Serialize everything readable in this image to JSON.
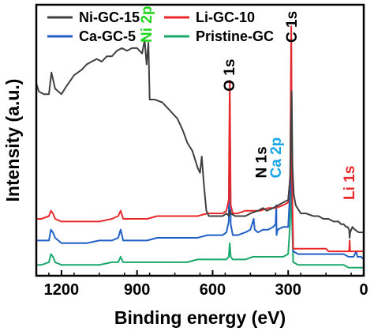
{
  "chart_data": {
    "type": "line",
    "title": "",
    "xlabel": "Binding energy (eV)",
    "ylabel": "Intensity (a.u.)",
    "xlim": [
      1300,
      0
    ],
    "x_reversed": true,
    "x_ticks": [
      1200,
      900,
      600,
      300,
      0
    ],
    "y_ticks_shown": false,
    "grid": false,
    "legend_placement": "top",
    "series": [
      {
        "name": "Ni-GC-15",
        "color": "#404040",
        "points": [
          [
            1300,
            0.71
          ],
          [
            1290,
            0.68
          ],
          [
            1270,
            0.67
          ],
          [
            1250,
            0.67
          ],
          [
            1240,
            0.75
          ],
          [
            1225,
            0.69
          ],
          [
            1200,
            0.67
          ],
          [
            1180,
            0.7
          ],
          [
            1150,
            0.74
          ],
          [
            1120,
            0.76
          ],
          [
            1100,
            0.78
          ],
          [
            1080,
            0.79
          ],
          [
            1060,
            0.8
          ],
          [
            1040,
            0.79
          ],
          [
            1020,
            0.81
          ],
          [
            1000,
            0.81
          ],
          [
            980,
            0.83
          ],
          [
            960,
            0.84
          ],
          [
            940,
            0.83
          ],
          [
            920,
            0.84
          ],
          [
            900,
            0.84
          ],
          [
            880,
            0.82
          ],
          [
            870,
            0.87
          ],
          [
            862,
            0.78
          ],
          [
            855,
            0.86
          ],
          [
            850,
            0.65
          ],
          [
            830,
            0.65
          ],
          [
            800,
            0.64
          ],
          [
            780,
            0.62
          ],
          [
            760,
            0.6
          ],
          [
            740,
            0.58
          ],
          [
            720,
            0.54
          ],
          [
            700,
            0.49
          ],
          [
            680,
            0.46
          ],
          [
            660,
            0.4
          ],
          [
            650,
            0.38
          ],
          [
            643,
            0.44
          ],
          [
            635,
            0.34
          ],
          [
            625,
            0.24
          ],
          [
            615,
            0.22
          ],
          [
            600,
            0.22
          ],
          [
            580,
            0.22
          ],
          [
            560,
            0.22
          ],
          [
            545,
            0.23
          ],
          [
            535,
            0.22
          ],
          [
            532,
            0.24
          ],
          [
            528,
            0.23
          ],
          [
            510,
            0.22
          ],
          [
            490,
            0.22
          ],
          [
            470,
            0.22
          ],
          [
            450,
            0.23
          ],
          [
            420,
            0.24
          ],
          [
            400,
            0.25
          ],
          [
            385,
            0.24
          ],
          [
            360,
            0.25
          ],
          [
            340,
            0.26
          ],
          [
            320,
            0.27
          ],
          [
            300,
            0.28
          ],
          [
            292,
            0.36
          ],
          [
            289,
            0.54
          ],
          [
            286,
            0.68
          ],
          [
            283,
            0.4
          ],
          [
            278,
            0.3
          ],
          [
            270,
            0.26
          ],
          [
            250,
            0.23
          ],
          [
            230,
            0.23
          ],
          [
            200,
            0.22
          ],
          [
            180,
            0.22
          ],
          [
            160,
            0.21
          ],
          [
            140,
            0.21
          ],
          [
            120,
            0.2
          ],
          [
            100,
            0.2
          ],
          [
            90,
            0.19
          ],
          [
            80,
            0.19
          ],
          [
            70,
            0.18
          ],
          [
            64,
            0.18
          ],
          [
            58,
            0.17
          ],
          [
            56,
            0.14
          ],
          [
            54,
            0.16
          ],
          [
            45,
            0.18
          ],
          [
            35,
            0.17
          ],
          [
            20,
            0.16
          ],
          [
            10,
            0.16
          ],
          [
            0,
            0.16
          ]
        ]
      },
      {
        "name": "Li-GC-10",
        "color": "#e8292b",
        "points": [
          [
            1300,
            0.21
          ],
          [
            1280,
            0.21
          ],
          [
            1250,
            0.22
          ],
          [
            1242,
            0.24
          ],
          [
            1234,
            0.23
          ],
          [
            1225,
            0.21
          ],
          [
            1200,
            0.2
          ],
          [
            1150,
            0.2
          ],
          [
            1100,
            0.2
          ],
          [
            1050,
            0.2
          ],
          [
            1000,
            0.21
          ],
          [
            975,
            0.22
          ],
          [
            965,
            0.24
          ],
          [
            955,
            0.21
          ],
          [
            940,
            0.21
          ],
          [
            900,
            0.21
          ],
          [
            860,
            0.21
          ],
          [
            820,
            0.22
          ],
          [
            780,
            0.22
          ],
          [
            740,
            0.22
          ],
          [
            700,
            0.22
          ],
          [
            660,
            0.22
          ],
          [
            620,
            0.23
          ],
          [
            580,
            0.23
          ],
          [
            560,
            0.23
          ],
          [
            545,
            0.24
          ],
          [
            536,
            0.28
          ],
          [
            532,
            0.72
          ],
          [
            528,
            0.26
          ],
          [
            520,
            0.23
          ],
          [
            500,
            0.23
          ],
          [
            470,
            0.24
          ],
          [
            440,
            0.24
          ],
          [
            410,
            0.24
          ],
          [
            380,
            0.25
          ],
          [
            350,
            0.25
          ],
          [
            320,
            0.26
          ],
          [
            300,
            0.27
          ],
          [
            292,
            0.37
          ],
          [
            288,
            0.92
          ],
          [
            285,
            0.38
          ],
          [
            280,
            0.1
          ],
          [
            260,
            0.1
          ],
          [
            230,
            0.1
          ],
          [
            200,
            0.1
          ],
          [
            170,
            0.1
          ],
          [
            150,
            0.1
          ],
          [
            140,
            0.09
          ],
          [
            120,
            0.09
          ],
          [
            100,
            0.09
          ],
          [
            80,
            0.09
          ],
          [
            64,
            0.09
          ],
          [
            58,
            0.09
          ],
          [
            56,
            0.13
          ],
          [
            54,
            0.09
          ],
          [
            40,
            0.09
          ],
          [
            20,
            0.09
          ],
          [
            10,
            0.09
          ],
          [
            0,
            0.09
          ]
        ]
      },
      {
        "name": "Ca-GC-5",
        "color": "#1f5fc6",
        "points": [
          [
            1300,
            0.13
          ],
          [
            1280,
            0.13
          ],
          [
            1250,
            0.13
          ],
          [
            1242,
            0.17
          ],
          [
            1234,
            0.16
          ],
          [
            1225,
            0.14
          ],
          [
            1200,
            0.12
          ],
          [
            1150,
            0.12
          ],
          [
            1100,
            0.12
          ],
          [
            1050,
            0.13
          ],
          [
            1000,
            0.13
          ],
          [
            975,
            0.14
          ],
          [
            965,
            0.17
          ],
          [
            955,
            0.13
          ],
          [
            940,
            0.13
          ],
          [
            900,
            0.13
          ],
          [
            860,
            0.13
          ],
          [
            820,
            0.14
          ],
          [
            780,
            0.14
          ],
          [
            740,
            0.14
          ],
          [
            700,
            0.14
          ],
          [
            660,
            0.14
          ],
          [
            620,
            0.15
          ],
          [
            580,
            0.15
          ],
          [
            560,
            0.15
          ],
          [
            545,
            0.16
          ],
          [
            536,
            0.2
          ],
          [
            532,
            0.64
          ],
          [
            528,
            0.19
          ],
          [
            520,
            0.15
          ],
          [
            500,
            0.15
          ],
          [
            470,
            0.16
          ],
          [
            450,
            0.17
          ],
          [
            440,
            0.2
          ],
          [
            437,
            0.21
          ],
          [
            433,
            0.17
          ],
          [
            420,
            0.16
          ],
          [
            400,
            0.17
          ],
          [
            380,
            0.17
          ],
          [
            360,
            0.18
          ],
          [
            350,
            0.19
          ],
          [
            347,
            0.26
          ],
          [
            346,
            0.15
          ],
          [
            342,
            0.17
          ],
          [
            320,
            0.18
          ],
          [
            300,
            0.18
          ],
          [
            292,
            0.32
          ],
          [
            288,
            0.85
          ],
          [
            285,
            0.31
          ],
          [
            280,
            0.09
          ],
          [
            260,
            0.08
          ],
          [
            230,
            0.08
          ],
          [
            200,
            0.08
          ],
          [
            170,
            0.08
          ],
          [
            150,
            0.08
          ],
          [
            140,
            0.08
          ],
          [
            120,
            0.08
          ],
          [
            100,
            0.08
          ],
          [
            80,
            0.08
          ],
          [
            60,
            0.07
          ],
          [
            40,
            0.07
          ],
          [
            30,
            0.09
          ],
          [
            25,
            0.07
          ],
          [
            20,
            0.07
          ],
          [
            10,
            0.07
          ],
          [
            0,
            0.06
          ]
        ]
      },
      {
        "name": "Pristine-GC",
        "color": "#1aa86b",
        "points": [
          [
            1300,
            0.04
          ],
          [
            1280,
            0.04
          ],
          [
            1250,
            0.05
          ],
          [
            1242,
            0.08
          ],
          [
            1234,
            0.07
          ],
          [
            1225,
            0.05
          ],
          [
            1200,
            0.04
          ],
          [
            1150,
            0.04
          ],
          [
            1100,
            0.04
          ],
          [
            1050,
            0.04
          ],
          [
            1000,
            0.05
          ],
          [
            975,
            0.05
          ],
          [
            965,
            0.07
          ],
          [
            955,
            0.05
          ],
          [
            940,
            0.05
          ],
          [
            900,
            0.05
          ],
          [
            860,
            0.05
          ],
          [
            820,
            0.05
          ],
          [
            780,
            0.05
          ],
          [
            740,
            0.05
          ],
          [
            700,
            0.05
          ],
          [
            660,
            0.06
          ],
          [
            620,
            0.06
          ],
          [
            580,
            0.06
          ],
          [
            560,
            0.06
          ],
          [
            545,
            0.06
          ],
          [
            536,
            0.07
          ],
          [
            532,
            0.12
          ],
          [
            528,
            0.07
          ],
          [
            520,
            0.06
          ],
          [
            500,
            0.06
          ],
          [
            470,
            0.06
          ],
          [
            440,
            0.07
          ],
          [
            410,
            0.07
          ],
          [
            380,
            0.07
          ],
          [
            350,
            0.07
          ],
          [
            320,
            0.07
          ],
          [
            300,
            0.08
          ],
          [
            292,
            0.2
          ],
          [
            288,
            0.6
          ],
          [
            285,
            0.22
          ],
          [
            280,
            0.05
          ],
          [
            260,
            0.04
          ],
          [
            230,
            0.04
          ],
          [
            200,
            0.04
          ],
          [
            170,
            0.04
          ],
          [
            150,
            0.04
          ],
          [
            140,
            0.04
          ],
          [
            120,
            0.04
          ],
          [
            100,
            0.04
          ],
          [
            80,
            0.04
          ],
          [
            60,
            0.03
          ],
          [
            40,
            0.03
          ],
          [
            20,
            0.03
          ],
          [
            0,
            0.03
          ]
        ]
      }
    ],
    "annotations": [
      {
        "text": "Ni 2p",
        "color": "#22d61f",
        "x": 862,
        "y": 0.86,
        "rotation": -90
      },
      {
        "text": "O 1s",
        "color": "#000000",
        "x": 532,
        "y": 0.68,
        "rotation": -90
      },
      {
        "text": "N 1s",
        "color": "#000000",
        "x": 405,
        "y": 0.36,
        "rotation": -90
      },
      {
        "text": "Ca 2p",
        "color": "#1ba6e8",
        "x": 347,
        "y": 0.36,
        "rotation": -90
      },
      {
        "text": "C 1s",
        "color": "#000000",
        "x": 285,
        "y": 0.86,
        "rotation": -90
      },
      {
        "text": "Li 1s",
        "color": "#e8292b",
        "x": 57,
        "y": 0.28,
        "rotation": -90
      }
    ]
  }
}
